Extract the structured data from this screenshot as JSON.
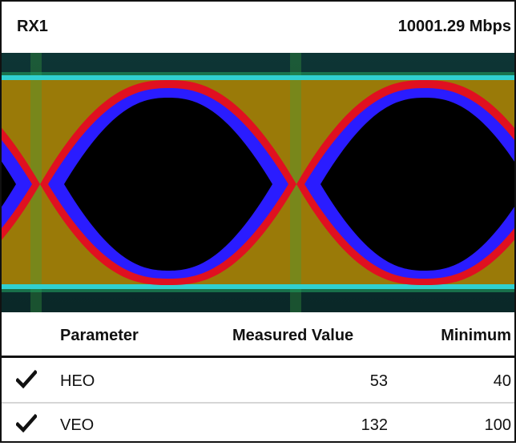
{
  "header": {
    "title": "RX1",
    "data_rate": "10001.29 Mbps"
  },
  "eye_diagram": {
    "type": "eye",
    "colors": {
      "background": "#0c2d2d",
      "fill": "#9a7a08",
      "edge_red": "#e01020",
      "edge_blue": "#2a1cff",
      "center": "#000000",
      "rail": "#30d0d0"
    }
  },
  "table": {
    "headers": {
      "parameter": "Parameter",
      "measured": "Measured Value",
      "minimum": "Minimum"
    },
    "rows": [
      {
        "status_icon": "check-icon",
        "parameter": "HEO",
        "measured": "53",
        "minimum": "40"
      },
      {
        "status_icon": "check-icon",
        "parameter": "VEO",
        "measured": "132",
        "minimum": "100"
      }
    ]
  }
}
